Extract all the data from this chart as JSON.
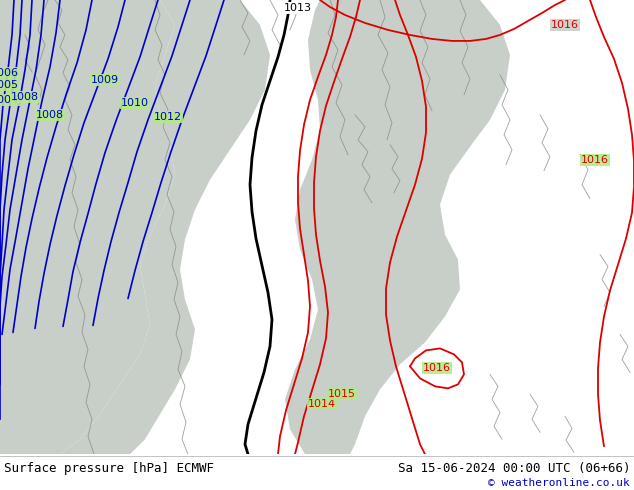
{
  "title_bottom_left": "Surface pressure [hPa] ECMWF",
  "title_bottom_right": "Sa 15-06-2024 00:00 UTC (06+66)",
  "copyright": "© weatheronline.co.uk",
  "bg_land": "#b5e88a",
  "bg_sea": "#c8cfc8",
  "contour_blue": "#0000cc",
  "contour_black": "#000000",
  "contour_red": "#dd0000",
  "coast_color": "#888888",
  "bottom_bg": "#ffffff",
  "bottom_text": "#000000",
  "copyright_color": "#0000cc",
  "figsize": [
    6.34,
    4.9
  ],
  "dpi": 100,
  "font_size_bar": 9,
  "font_size_label": 8
}
